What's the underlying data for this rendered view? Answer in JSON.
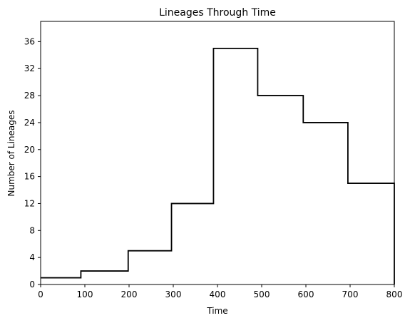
{
  "chart_data": {
    "type": "line",
    "title": "Lineages Through Time",
    "xlabel": "Time",
    "ylabel": "Number of Lineages",
    "xlim": [
      0,
      800
    ],
    "ylim": [
      0,
      39
    ],
    "xticks": [
      0,
      100,
      200,
      300,
      400,
      500,
      600,
      700,
      800
    ],
    "yticks": [
      0,
      4,
      8,
      12,
      16,
      20,
      24,
      28,
      32,
      36
    ],
    "grid": false,
    "step": "post",
    "line_color": "#000000",
    "series": [
      {
        "x": [
          0,
          91,
          198,
          296,
          391,
          491,
          594,
          695,
          800,
          800
        ],
        "y": [
          1,
          2,
          5,
          12,
          35,
          28,
          24,
          15,
          15,
          0
        ]
      }
    ]
  }
}
